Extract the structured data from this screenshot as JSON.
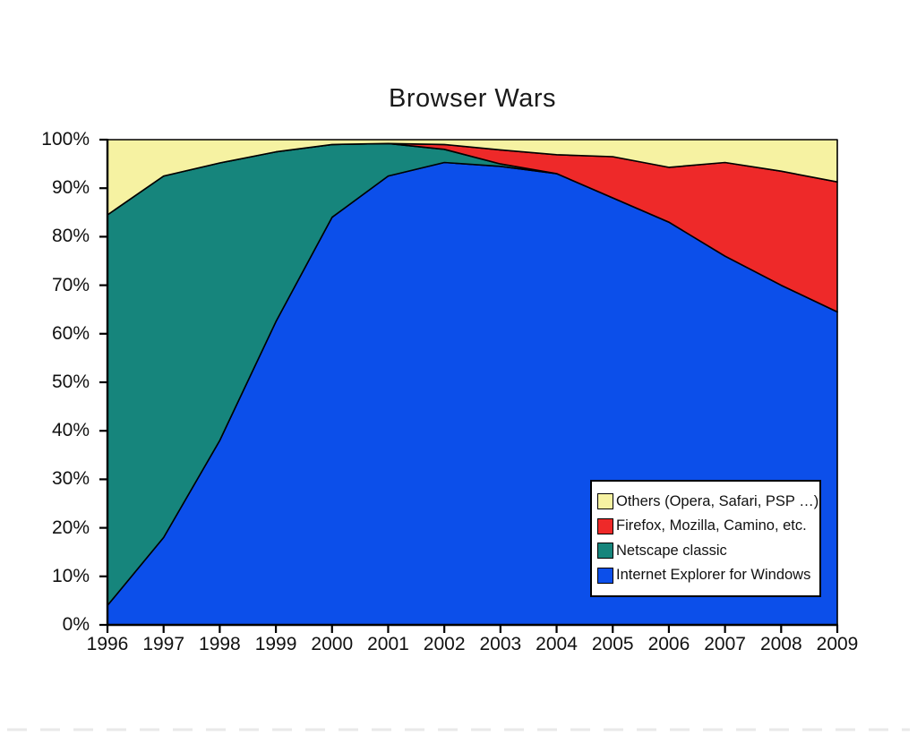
{
  "page": {
    "background": "#ffffff"
  },
  "chart_data": {
    "type": "area",
    "stacked": true,
    "title": "Browser Wars",
    "xlabel": "",
    "ylabel": "",
    "ylim": [
      0,
      100
    ],
    "grid": false,
    "outline_color": "#000000",
    "x": [
      1996,
      1997,
      1998,
      1999,
      2000,
      2001,
      2002,
      2003,
      2004,
      2005,
      2006,
      2007,
      2008,
      2009
    ],
    "x_tick_labels": [
      "1996",
      "1997",
      "1998",
      "1999",
      "2000",
      "2001",
      "2002",
      "2003",
      "2004",
      "2005",
      "2006",
      "2007",
      "2008",
      "2009"
    ],
    "y_tick_labels": [
      "0%",
      "10%",
      "20%",
      "30%",
      "40%",
      "50%",
      "60%",
      "70%",
      "80%",
      "90%",
      "100%"
    ],
    "series": [
      {
        "name": "Internet Explorer for Windows",
        "color": "#0C4FEA",
        "values": [
          4,
          18,
          38,
          62.5,
          84,
          92.5,
          95.3,
          94.5,
          93,
          88,
          83,
          76,
          70,
          64.5
        ]
      },
      {
        "name": "Netscape classic",
        "color": "#16857C",
        "values": [
          80.5,
          74.5,
          57.2,
          35,
          15,
          6.7,
          2.7,
          0.5,
          0,
          0,
          0,
          0,
          0,
          0
        ]
      },
      {
        "name": "Firefox, Mozilla, Camino, etc.",
        "color": "#EE2929",
        "values": [
          0,
          0,
          0,
          0,
          0,
          0,
          1,
          2.9,
          3.9,
          8.5,
          11.3,
          19.3,
          23.5,
          26.8
        ]
      },
      {
        "name": "Others (Opera, Safari, PSP …)",
        "color": "#F6F2A2",
        "values": [
          15.5,
          7.5,
          4.8,
          2.5,
          1,
          0.8,
          1,
          2.1,
          3.1,
          3.5,
          5.7,
          4.7,
          6.5,
          8.7
        ]
      }
    ],
    "legend": {
      "position": "bottom-right",
      "order": "reverse-stack"
    }
  }
}
